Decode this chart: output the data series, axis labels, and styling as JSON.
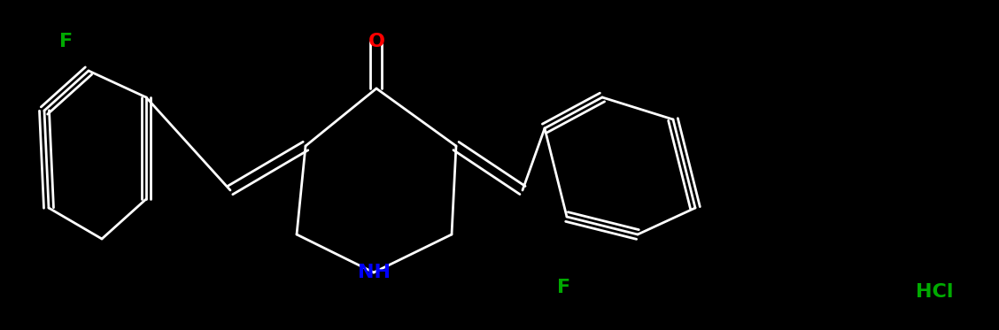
{
  "bg": "#000000",
  "bond_color": "#ffffff",
  "bond_width": 2.0,
  "font_size": 16,
  "colors": {
    "F": "#00AA00",
    "O": "#FF0000",
    "N": "#0000FF",
    "Cl": "#00AA00",
    "C": "#ffffff"
  },
  "figsize": [
    11.28,
    3.73
  ],
  "dpi": 100
}
